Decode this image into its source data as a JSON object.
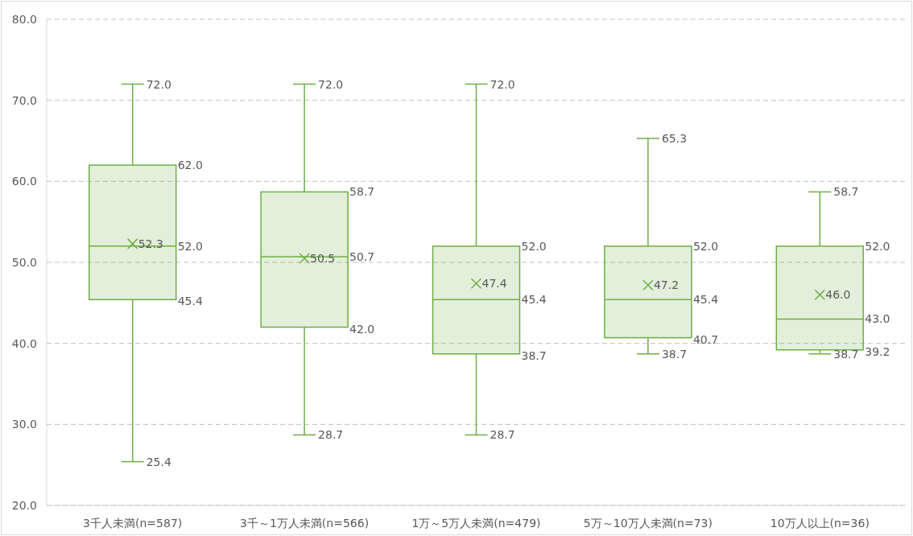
{
  "chart_data": {
    "type": "box",
    "categories": [
      "3千人未満(n=587)",
      "3千～1万人未満(n=566)",
      "1万～5万人未満(n=479)",
      "5万～10万人未満(n=73)",
      "10万人以上(n=36)"
    ],
    "series": [
      {
        "color": "#70ad47",
        "boxes": [
          {
            "low": 25.4,
            "q1": 45.4,
            "median": 52.0,
            "q3": 62.0,
            "high": 72.0,
            "mean": 52.3
          },
          {
            "low": 28.7,
            "q1": 42.0,
            "median": 50.7,
            "q3": 58.7,
            "high": 72.0,
            "mean": 50.5
          },
          {
            "low": 28.7,
            "q1": 38.7,
            "median": 45.4,
            "q3": 52.0,
            "high": 72.0,
            "mean": 47.4
          },
          {
            "low": 38.7,
            "q1": 40.7,
            "median": 45.4,
            "q3": 52.0,
            "high": 65.3,
            "mean": 47.2
          },
          {
            "low": 38.7,
            "q1": 39.2,
            "median": 43.0,
            "q3": 52.0,
            "high": 58.7,
            "mean": 46.0
          }
        ]
      }
    ],
    "ylim": [
      20,
      80
    ],
    "yticks": [
      {
        "value": 20,
        "label": "20.0"
      },
      {
        "value": 30,
        "label": "30.0"
      },
      {
        "value": 40,
        "label": "40.0"
      },
      {
        "value": 50,
        "label": "50.0"
      },
      {
        "value": 60,
        "label": "60.0"
      },
      {
        "value": 70,
        "label": "70.0"
      },
      {
        "value": 80,
        "label": "80.0"
      }
    ],
    "grid": "y",
    "data_labels": true,
    "annotations": [
      "72.0",
      "62.0",
      "52.0",
      "45.4",
      "25.4",
      "52.3",
      "72.0",
      "58.7",
      "50.7",
      "42.0",
      "28.7",
      "50.5",
      "72.0",
      "52.0",
      "45.4",
      "38.7",
      "28.7",
      "47.4",
      "65.3",
      "52.0",
      "45.4",
      "40.7",
      "38.7",
      "47.2",
      "58.7",
      "52.0",
      "43.0",
      "39.2",
      "38.7",
      "46.0"
    ]
  }
}
